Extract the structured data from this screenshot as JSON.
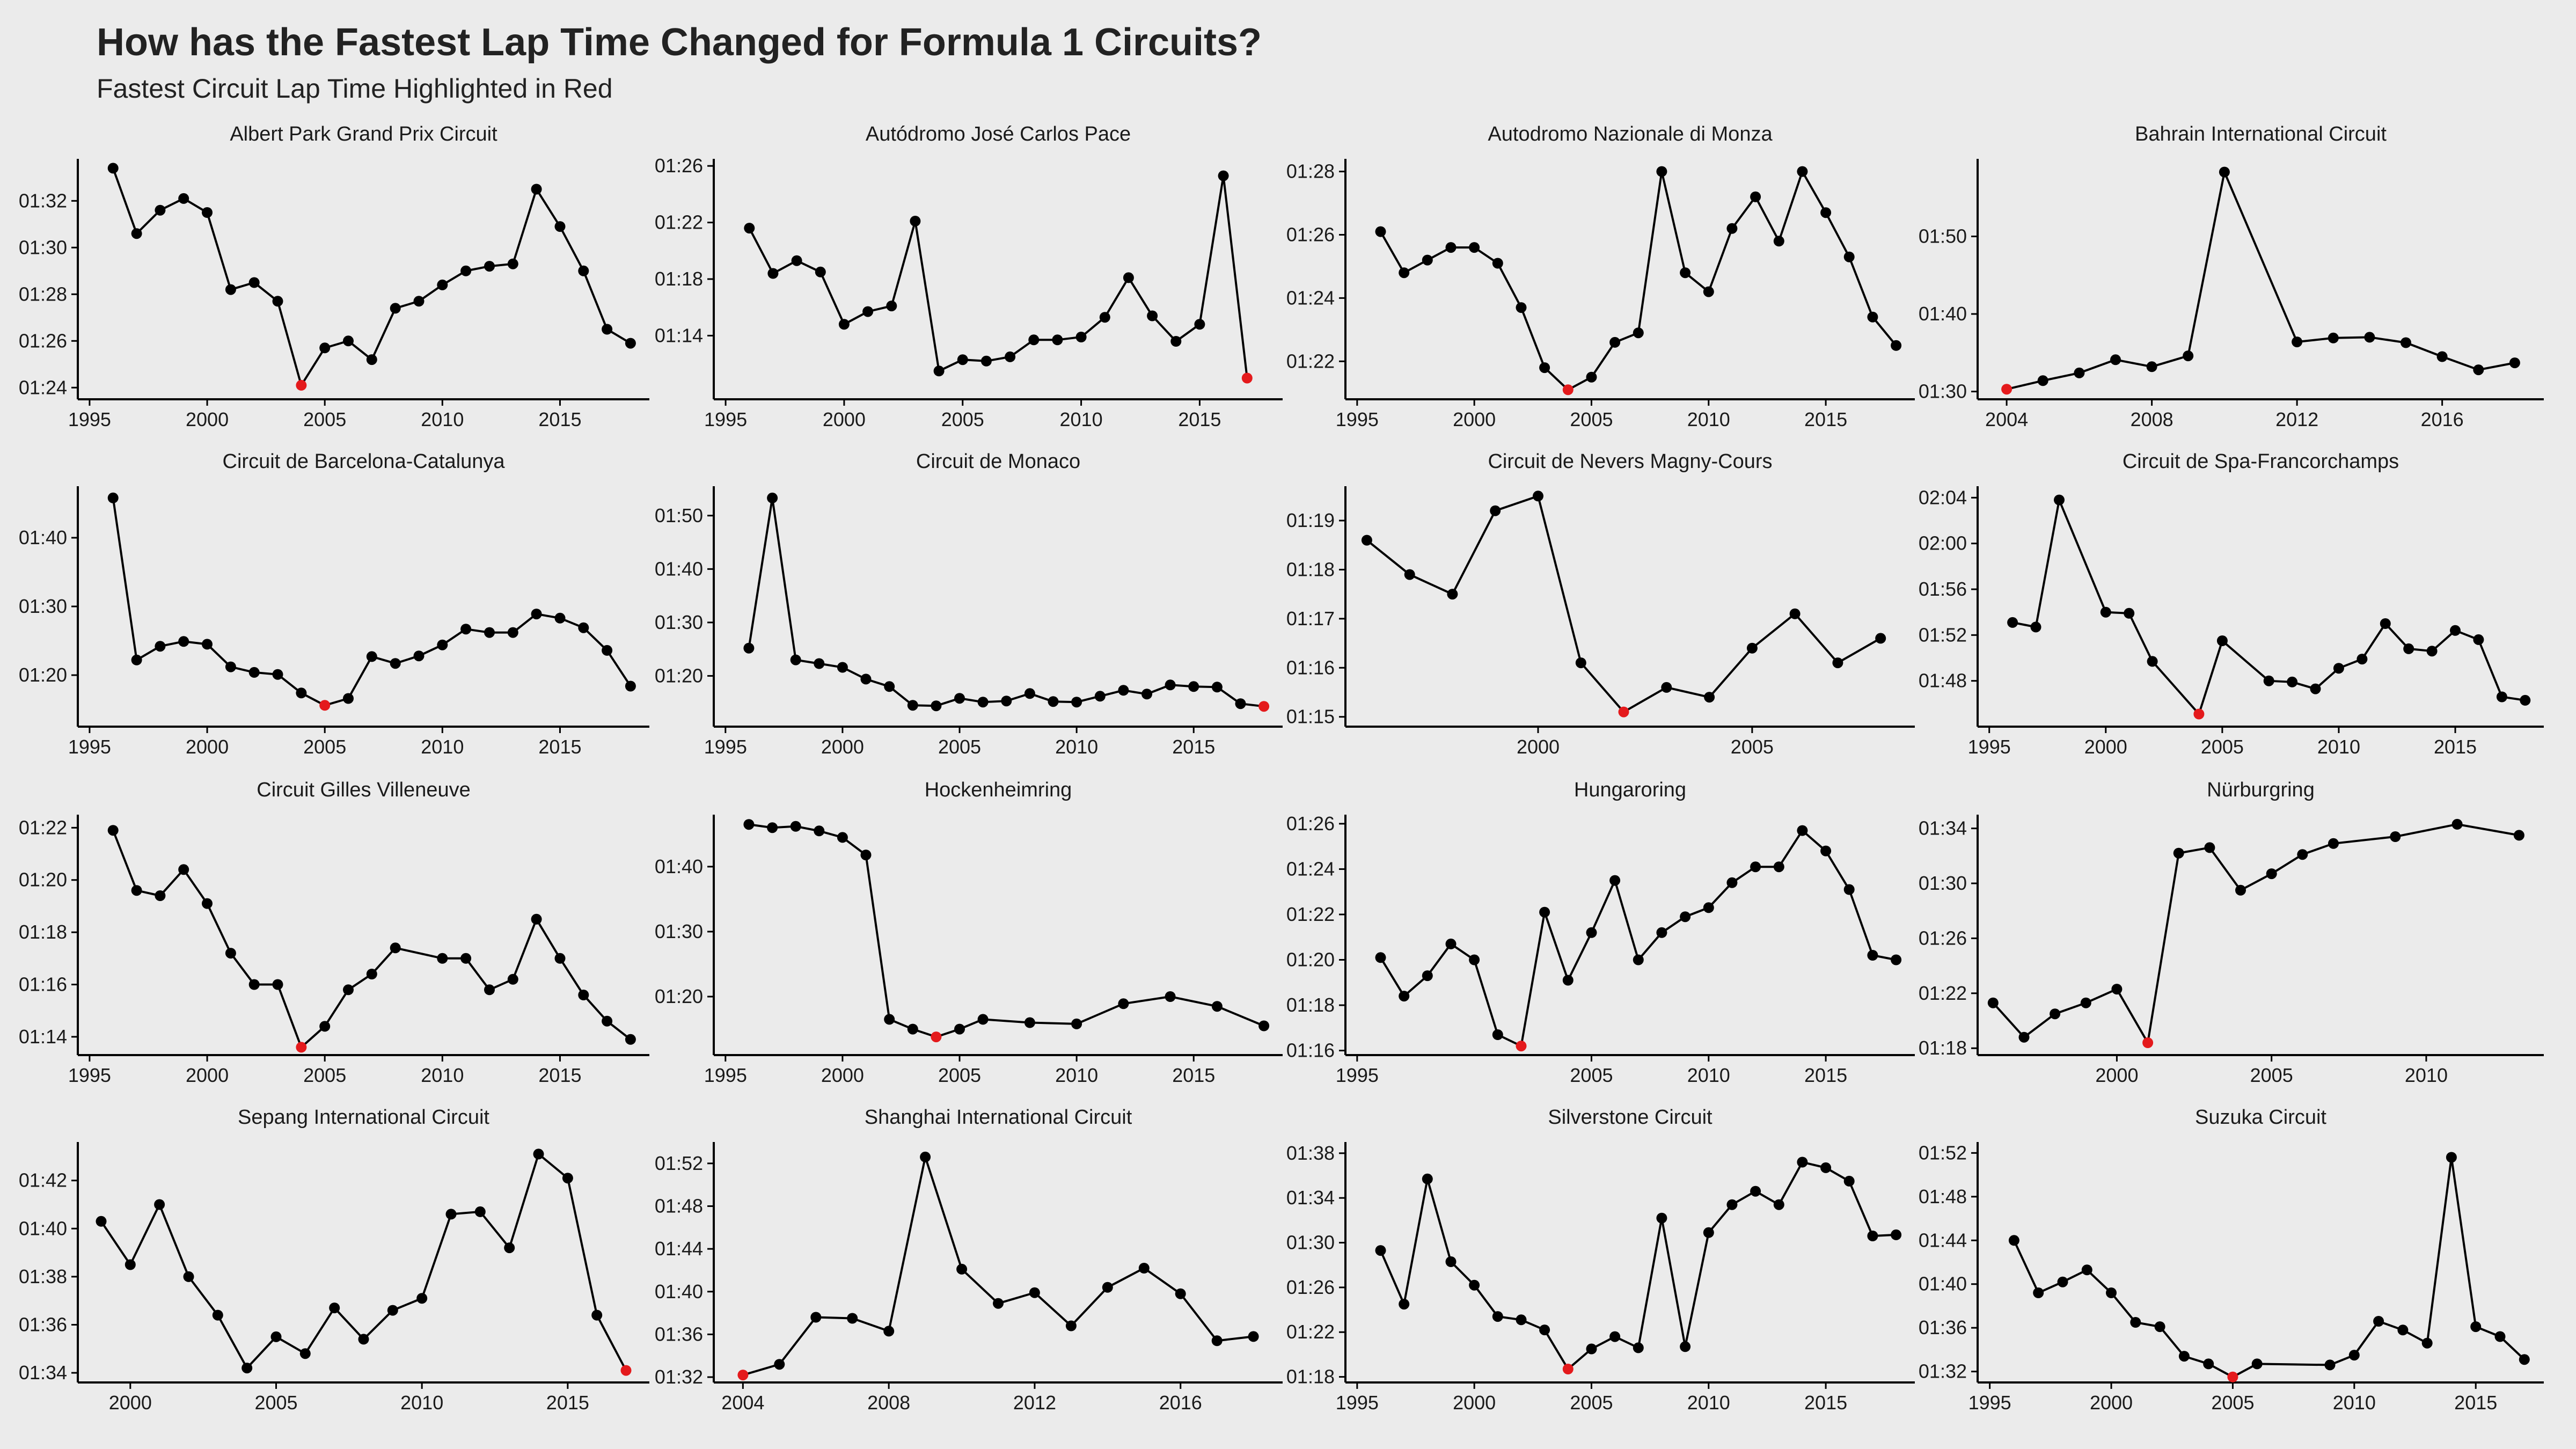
{
  "title": "How has the Fastest Lap Time Changed for Formula 1 Circuits?",
  "subtitle": "Fastest Circuit Lap Time Highlighted in Red",
  "colors": {
    "background": "#ebebeb",
    "line": "#000000",
    "point": "#000000",
    "highlight": "#e41a1c"
  },
  "chart_data": [
    {
      "type": "line",
      "title": "Albert Park Grand Prix Circuit",
      "x_ticks": [
        1995,
        2000,
        2005,
        2010,
        2015
      ],
      "y_ticks": [
        "01:24",
        "01:26",
        "01:28",
        "01:30",
        "01:32"
      ],
      "xlim": [
        1994.5,
        2018.8
      ],
      "ylim": [
        "01:23.5",
        "01:33.8"
      ],
      "x": [
        1996,
        1997,
        1998,
        1999,
        2000,
        2001,
        2002,
        2003,
        2004,
        2005,
        2006,
        2007,
        2008,
        2009,
        2010,
        2011,
        2012,
        2013,
        2014,
        2015,
        2016,
        2017,
        2018
      ],
      "y": [
        "01:33.4",
        "01:30.6",
        "01:31.6",
        "01:32.1",
        "01:31.5",
        "01:28.2",
        "01:28.5",
        "01:27.7",
        "01:24.1",
        "01:25.7",
        "01:26.0",
        "01:25.2",
        "01:27.4",
        "01:27.7",
        "01:28.4",
        "01:29.0",
        "01:29.2",
        "01:29.3",
        "01:32.5",
        "01:30.9",
        "01:29.0",
        "01:26.5",
        "01:25.9"
      ],
      "highlight_index": 8
    },
    {
      "type": "line",
      "title": "Autódromo José Carlos Pace",
      "x_ticks": [
        1995,
        2000,
        2005,
        2010,
        2015
      ],
      "y_ticks": [
        "01:14",
        "01:18",
        "01:22",
        "01:26"
      ],
      "xlim": [
        1994.5,
        2018.5
      ],
      "ylim": [
        "01:09.5",
        "01:26.5"
      ],
      "x": [
        1996,
        1997,
        1998,
        1999,
        2000,
        2001,
        2002,
        2003,
        2004,
        2005,
        2006,
        2007,
        2008,
        2009,
        2010,
        2011,
        2012,
        2013,
        2014,
        2015,
        2016,
        2017
      ],
      "y": [
        "01:21.6",
        "01:18.4",
        "01:19.3",
        "01:18.5",
        "01:14.8",
        "01:15.7",
        "01:16.1",
        "01:22.1",
        "01:11.5",
        "01:12.3",
        "01:12.2",
        "01:12.5",
        "01:13.7",
        "01:13.7",
        "01:13.9",
        "01:15.3",
        "01:18.1",
        "01:15.4",
        "01:13.6",
        "01:14.8",
        "01:25.3",
        "01:11.0"
      ],
      "highlight_index": 21
    },
    {
      "type": "line",
      "title": "Autodromo Nazionale di Monza",
      "x_ticks": [
        1995,
        2000,
        2005,
        2010,
        2015
      ],
      "y_ticks": [
        "01:22",
        "01:24",
        "01:26",
        "01:28"
      ],
      "xlim": [
        1994.5,
        2018.8
      ],
      "ylim": [
        "01:20.8",
        "01:28.4"
      ],
      "x": [
        1996,
        1997,
        1998,
        1999,
        2000,
        2001,
        2002,
        2003,
        2004,
        2005,
        2006,
        2007,
        2008,
        2009,
        2010,
        2011,
        2012,
        2013,
        2014,
        2015,
        2016,
        2017,
        2018
      ],
      "y": [
        "01:26.1",
        "01:24.8",
        "01:25.2",
        "01:25.6",
        "01:25.6",
        "01:25.1",
        "01:23.7",
        "01:21.8",
        "01:21.1",
        "01:21.5",
        "01:22.6",
        "01:22.9",
        "01:28.0",
        "01:24.8",
        "01:24.2",
        "01:26.2",
        "01:27.2",
        "01:25.8",
        "01:28.0",
        "01:26.7",
        "01:25.3",
        "01:23.4",
        "01:22.5"
      ],
      "highlight_index": 8
    },
    {
      "type": "line",
      "title": "Bahrain International Circuit",
      "x_ticks": [
        2004,
        2008,
        2012,
        2016
      ],
      "y_ticks": [
        "01:30",
        "01:40",
        "01:50"
      ],
      "xlim": [
        2003.2,
        2018.8
      ],
      "ylim": [
        "01:29.0",
        "02:00.0"
      ],
      "x": [
        2004,
        2005,
        2006,
        2007,
        2008,
        2009,
        2010,
        2012,
        2013,
        2014,
        2015,
        2016,
        2017,
        2018
      ],
      "y": [
        "01:30.3",
        "01:31.4",
        "01:32.4",
        "01:34.1",
        "01:33.2",
        "01:34.6",
        "01:58.3",
        "01:36.4",
        "01:36.9",
        "01:37.0",
        "01:36.3",
        "01:34.5",
        "01:32.8",
        "01:33.7"
      ],
      "highlight_index": 0
    },
    {
      "type": "line",
      "title": "Circuit de Barcelona-Catalunya",
      "x_ticks": [
        1995,
        2000,
        2005,
        2010,
        2015
      ],
      "y_ticks": [
        "01:20",
        "01:30",
        "01:40"
      ],
      "xlim": [
        1994.5,
        2018.8
      ],
      "ylim": [
        "01:12.5",
        "01:47.5"
      ],
      "x": [
        1996,
        1997,
        1998,
        1999,
        2000,
        2001,
        2002,
        2003,
        2004,
        2005,
        2006,
        2007,
        2008,
        2009,
        2010,
        2011,
        2012,
        2013,
        2014,
        2015,
        2016,
        2017,
        2018
      ],
      "y": [
        "01:45.8",
        "01:22.2",
        "01:24.2",
        "01:24.9",
        "01:24.5",
        "01:21.2",
        "01:20.4",
        "01:20.1",
        "01:17.4",
        "01:15.6",
        "01:16.6",
        "01:22.7",
        "01:21.7",
        "01:22.8",
        "01:24.4",
        "01:26.7",
        "01:26.2",
        "01:26.2",
        "01:28.9",
        "01:28.3",
        "01:26.9",
        "01:23.6",
        "01:18.4"
      ],
      "highlight_index": 9
    },
    {
      "type": "line",
      "title": "Circuit de Monaco",
      "x_ticks": [
        1995,
        2000,
        2005,
        2010,
        2015
      ],
      "y_ticks": [
        "01:20",
        "01:30",
        "01:40",
        "01:50"
      ],
      "xlim": [
        1994.5,
        2018.8
      ],
      "ylim": [
        "01:10.5",
        "01:55.5"
      ],
      "x": [
        1996,
        1997,
        1998,
        1999,
        2000,
        2001,
        2002,
        2003,
        2004,
        2005,
        2006,
        2007,
        2008,
        2009,
        2010,
        2011,
        2012,
        2013,
        2014,
        2015,
        2016,
        2017,
        2018
      ],
      "y": [
        "01:25.2",
        "01:53.3",
        "01:23.0",
        "01:22.3",
        "01:21.6",
        "01:19.4",
        "01:18.0",
        "01:14.5",
        "01:14.4",
        "01:15.8",
        "01:15.1",
        "01:15.3",
        "01:16.7",
        "01:15.2",
        "01:15.1",
        "01:16.2",
        "01:17.3",
        "01:16.6",
        "01:18.3",
        "01:18.0",
        "01:17.9",
        "01:14.8",
        "01:14.3"
      ],
      "highlight_index": 22
    },
    {
      "type": "line",
      "title": "Circuit de Nevers Magny-Cours",
      "x_ticks": [
        2000,
        2005
      ],
      "y_ticks": [
        "01:15",
        "01:16",
        "01:17",
        "01:18",
        "01:19"
      ],
      "xlim": [
        1995.5,
        2008.8
      ],
      "ylim": [
        "01:14.8",
        "01:19.7"
      ],
      "x": [
        1996,
        1997,
        1998,
        1999,
        2000,
        2001,
        2002,
        2003,
        2004,
        2005,
        2006,
        2007,
        2008
      ],
      "y": [
        "01:18.6",
        "01:17.9",
        "01:17.5",
        "01:19.2",
        "01:19.5",
        "01:16.1",
        "01:15.1",
        "01:15.6",
        "01:15.4",
        "01:16.4",
        "01:17.1",
        "01:16.1",
        "01:16.6"
      ],
      "highlight_index": 6
    },
    {
      "type": "line",
      "title": "Circuit de Spa-Francorchamps",
      "x_ticks": [
        1995,
        2000,
        2005,
        2010,
        2015
      ],
      "y_ticks": [
        "01:48",
        "01:52",
        "01:56",
        "02:00",
        "02:04"
      ],
      "xlim": [
        1994.5,
        2018.8
      ],
      "ylim": [
        "01:44.0",
        "02:05.0"
      ],
      "x": [
        1996,
        1997,
        1998,
        2000,
        2001,
        2002,
        2004,
        2005,
        2007,
        2008,
        2009,
        2010,
        2011,
        2012,
        2013,
        2014,
        2015,
        2016,
        2017,
        2018
      ],
      "y": [
        "01:53.1",
        "01:52.7",
        "02:03.8",
        "01:54.0",
        "01:53.9",
        "01:49.7",
        "01:45.1",
        "01:51.5",
        "01:48.0",
        "01:47.9",
        "01:47.3",
        "01:49.1",
        "01:49.9",
        "01:53.0",
        "01:50.8",
        "01:50.6",
        "01:52.4",
        "01:51.6",
        "01:46.6",
        "01:46.3"
      ],
      "highlight_index": 6
    },
    {
      "type": "line",
      "title": "Circuit Gilles Villeneuve",
      "x_ticks": [
        1995,
        2000,
        2005,
        2010,
        2015
      ],
      "y_ticks": [
        "01:14",
        "01:16",
        "01:18",
        "01:20",
        "01:22"
      ],
      "xlim": [
        1994.5,
        2018.8
      ],
      "ylim": [
        "01:13.3",
        "01:22.5"
      ],
      "x": [
        1996,
        1997,
        1998,
        1999,
        2000,
        2001,
        2002,
        2003,
        2004,
        2005,
        2006,
        2007,
        2008,
        2010,
        2011,
        2012,
        2013,
        2014,
        2015,
        2016,
        2017,
        2018
      ],
      "y": [
        "01:21.9",
        "01:19.6",
        "01:19.4",
        "01:20.4",
        "01:19.1",
        "01:17.2",
        "01:16.0",
        "01:16.0",
        "01:13.6",
        "01:14.4",
        "01:15.8",
        "01:16.4",
        "01:17.4",
        "01:17.0",
        "01:17.0",
        "01:15.8",
        "01:16.2",
        "01:18.5",
        "01:17.0",
        "01:15.6",
        "01:14.6",
        "01:13.9"
      ],
      "highlight_index": 8
    },
    {
      "type": "line",
      "title": "Hockenheimring",
      "x_ticks": [
        1995,
        2000,
        2005,
        2010,
        2015
      ],
      "y_ticks": [
        "01:20",
        "01:30",
        "01:40"
      ],
      "xlim": [
        1994.5,
        2018.8
      ],
      "ylim": [
        "01:11.0",
        "01:48.0"
      ],
      "x": [
        1996,
        1997,
        1998,
        1999,
        2000,
        2001,
        2002,
        2003,
        2004,
        2005,
        2006,
        2008,
        2010,
        2012,
        2014,
        2016,
        2018
      ],
      "y": [
        "01:46.5",
        "01:46.0",
        "01:46.2",
        "01:45.5",
        "01:44.5",
        "01:41.8",
        "01:16.5",
        "01:15.0",
        "01:13.8",
        "01:15.0",
        "01:16.5",
        "01:16.0",
        "01:15.8",
        "01:18.9",
        "01:20.0",
        "01:18.5",
        "01:15.5"
      ],
      "highlight_index": 8
    },
    {
      "type": "line",
      "title": "Hungaroring",
      "x_ticks": [
        1995,
        2005,
        2010,
        2015
      ],
      "y_ticks": [
        "01:16",
        "01:18",
        "01:20",
        "01:22",
        "01:24",
        "01:26"
      ],
      "xlim": [
        1994.5,
        2018.8
      ],
      "ylim": [
        "01:15.8",
        "01:26.4"
      ],
      "x": [
        1996,
        1997,
        1998,
        1999,
        2000,
        2001,
        2002,
        2003,
        2004,
        2005,
        2006,
        2007,
        2008,
        2009,
        2010,
        2011,
        2012,
        2013,
        2014,
        2015,
        2016,
        2017,
        2018
      ],
      "y": [
        "01:20.1",
        "01:18.4",
        "01:19.3",
        "01:20.7",
        "01:20.0",
        "01:16.7",
        "01:16.2",
        "01:22.1",
        "01:19.1",
        "01:21.2",
        "01:23.5",
        "01:20.0",
        "01:21.2",
        "01:21.9",
        "01:22.3",
        "01:23.4",
        "01:24.1",
        "01:24.1",
        "01:25.7",
        "01:24.8",
        "01:23.1",
        "01:20.2",
        "01:20.0"
      ],
      "highlight_index": 6
    },
    {
      "type": "line",
      "title": "Nürburgring",
      "x_ticks": [
        2000,
        2005,
        2010
      ],
      "y_ticks": [
        "01:18",
        "01:22",
        "01:26",
        "01:30",
        "01:34"
      ],
      "xlim": [
        1995.5,
        2013.8
      ],
      "ylim": [
        "01:17.5",
        "01:35.0"
      ],
      "x": [
        1996,
        1997,
        1998,
        1999,
        2000,
        2001,
        2002,
        2003,
        2004,
        2005,
        2006,
        2007,
        2009,
        2011,
        2013
      ],
      "y": [
        "01:21.3",
        "01:18.8",
        "01:20.5",
        "01:21.3",
        "01:22.3",
        "01:18.4",
        "01:32.2",
        "01:32.6",
        "01:29.5",
        "01:30.7",
        "01:32.1",
        "01:32.9",
        "01:33.4",
        "01:34.3",
        "01:33.5"
      ],
      "highlight_index": 5
    },
    {
      "type": "line",
      "title": "Sepang International Circuit",
      "x_ticks": [
        2000,
        2005,
        2010,
        2015
      ],
      "y_ticks": [
        "01:34",
        "01:36",
        "01:38",
        "01:40",
        "01:42"
      ],
      "xlim": [
        1998.2,
        2017.8
      ],
      "ylim": [
        "01:33.6",
        "01:43.6"
      ],
      "x": [
        1999,
        2000,
        2001,
        2002,
        2003,
        2004,
        2005,
        2006,
        2007,
        2008,
        2009,
        2010,
        2011,
        2012,
        2013,
        2014,
        2015,
        2016,
        2017
      ],
      "y": [
        "01:40.3",
        "01:38.5",
        "01:41.0",
        "01:38.0",
        "01:36.4",
        "01:34.2",
        "01:35.5",
        "01:34.8",
        "01:36.7",
        "01:35.4",
        "01:36.6",
        "01:37.1",
        "01:40.6",
        "01:40.7",
        "01:39.2",
        "01:43.1",
        "01:42.1",
        "01:36.4",
        "01:34.1"
      ],
      "highlight_index": 18
    },
    {
      "type": "line",
      "title": "Shanghai International Circuit",
      "x_ticks": [
        2004,
        2008,
        2012,
        2016
      ],
      "y_ticks": [
        "01:32",
        "01:36",
        "01:40",
        "01:44",
        "01:48",
        "01:52"
      ],
      "xlim": [
        2003.2,
        2018.8
      ],
      "ylim": [
        "01:31.5",
        "01:54.0"
      ],
      "x": [
        2004,
        2005,
        2006,
        2007,
        2008,
        2009,
        2010,
        2011,
        2012,
        2013,
        2014,
        2015,
        2016,
        2017,
        2018
      ],
      "y": [
        "01:32.2",
        "01:33.2",
        "01:37.6",
        "01:37.5",
        "01:36.3",
        "01:52.6",
        "01:42.1",
        "01:38.9",
        "01:39.9",
        "01:36.8",
        "01:40.4",
        "01:42.2",
        "01:39.8",
        "01:35.4",
        "01:35.8"
      ],
      "highlight_index": 0
    },
    {
      "type": "line",
      "title": "Silverstone Circuit",
      "x_ticks": [
        1995,
        2000,
        2005,
        2010,
        2015
      ],
      "y_ticks": [
        "01:18",
        "01:22",
        "01:26",
        "01:30",
        "01:34",
        "01:38"
      ],
      "xlim": [
        1994.5,
        2018.8
      ],
      "ylim": [
        "01:17.5",
        "01:39.0"
      ],
      "x": [
        1996,
        1997,
        1998,
        1999,
        2000,
        2001,
        2002,
        2003,
        2004,
        2005,
        2006,
        2007,
        2008,
        2009,
        2010,
        2011,
        2012,
        2013,
        2014,
        2015,
        2016,
        2017,
        2018
      ],
      "y": [
        "01:29.3",
        "01:24.5",
        "01:35.7",
        "01:28.3",
        "01:26.2",
        "01:23.4",
        "01:23.1",
        "01:22.2",
        "01:18.7",
        "01:20.5",
        "01:21.6",
        "01:20.6",
        "01:32.2",
        "01:20.7",
        "01:30.9",
        "01:33.4",
        "01:34.6",
        "01:33.4",
        "01:37.2",
        "01:36.7",
        "01:35.5",
        "01:30.6",
        "01:30.7"
      ],
      "highlight_index": 8
    },
    {
      "type": "line",
      "title": "Suzuka Circuit",
      "x_ticks": [
        1995,
        2000,
        2005,
        2010,
        2015
      ],
      "y_ticks": [
        "01:32",
        "01:36",
        "01:40",
        "01:44",
        "01:48",
        "01:52"
      ],
      "xlim": [
        1994.5,
        2017.8
      ],
      "ylim": [
        "01:31.0",
        "01:53.0"
      ],
      "x": [
        1996,
        1997,
        1998,
        1999,
        2000,
        2001,
        2002,
        2003,
        2004,
        2005,
        2006,
        2009,
        2010,
        2011,
        2012,
        2013,
        2014,
        2015,
        2016,
        2017
      ],
      "y": [
        "01:44.0",
        "01:39.2",
        "01:40.2",
        "01:41.3",
        "01:39.2",
        "01:36.5",
        "01:36.1",
        "01:33.4",
        "01:32.7",
        "01:31.5",
        "01:32.7",
        "01:32.6",
        "01:33.5",
        "01:36.6",
        "01:35.8",
        "01:34.6",
        "01:51.6",
        "01:36.1",
        "01:35.2",
        "01:33.1"
      ],
      "highlight_index": 9
    }
  ]
}
